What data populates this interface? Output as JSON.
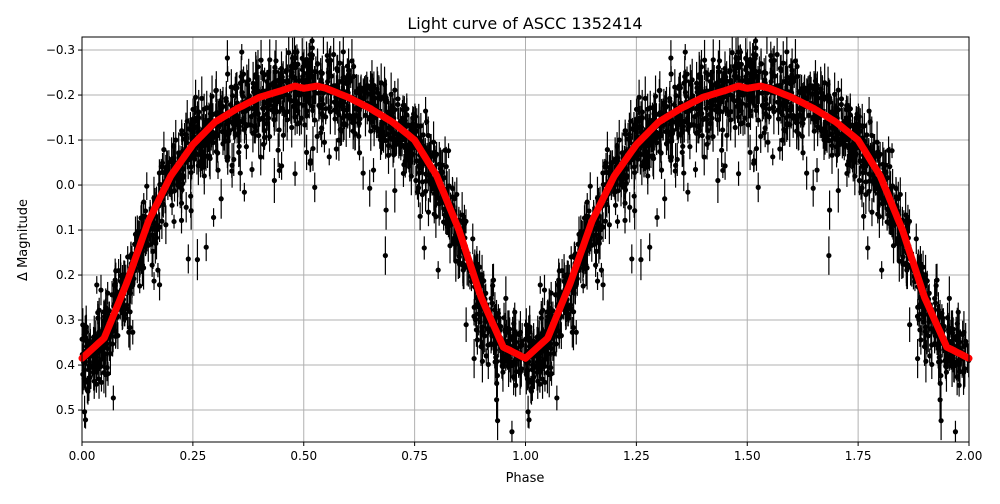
{
  "chart_data": {
    "type": "scatter",
    "title": "Light curve of ASCC 1352414",
    "xlabel": "Phase",
    "ylabel": "Δ Magnitude",
    "xlim": [
      0,
      2
    ],
    "ylim": [
      0.571,
      -0.329
    ],
    "y_inverted": true,
    "grid": true,
    "xticks": [
      0,
      0.25,
      0.5,
      0.75,
      1.0,
      1.25,
      1.5,
      1.75,
      2.0
    ],
    "xtick_labels": [
      "0.00",
      "0.25",
      "0.50",
      "0.75",
      "1.00",
      "1.25",
      "1.50",
      "1.75",
      "2.00"
    ],
    "yticks": [
      -0.3,
      -0.2,
      -0.1,
      0.0,
      0.1,
      0.2,
      0.3,
      0.4,
      0.5
    ],
    "ytick_labels": [
      "−0.3",
      "−0.2",
      "−0.1",
      "0.0",
      "0.1",
      "0.2",
      "0.3",
      "0.4",
      "0.5"
    ],
    "series": [
      {
        "name": "observations",
        "style": "black points with error bars",
        "color": "#000000",
        "approx_points_per_cycle": 1400,
        "scatter_about_model_mag": 0.04,
        "faint_outlier_fraction": 0.12,
        "typical_error_bar_mag": 0.03
      },
      {
        "name": "binned model",
        "style": "thick line",
        "color": "#ff0000",
        "phase": [
          0.0,
          0.05,
          0.1,
          0.15,
          0.2,
          0.25,
          0.3,
          0.35,
          0.4,
          0.45,
          0.48,
          0.5,
          0.53,
          0.55,
          0.6,
          0.65,
          0.7,
          0.75,
          0.8,
          0.85,
          0.9,
          0.95,
          1.0
        ],
        "magnitude": [
          0.385,
          0.34,
          0.22,
          0.08,
          -0.02,
          -0.09,
          -0.14,
          -0.17,
          -0.195,
          -0.21,
          -0.22,
          -0.215,
          -0.22,
          -0.215,
          -0.195,
          -0.17,
          -0.14,
          -0.1,
          -0.02,
          0.1,
          0.25,
          0.36,
          0.385
        ],
        "repeats_every_phase": 1
      }
    ]
  }
}
